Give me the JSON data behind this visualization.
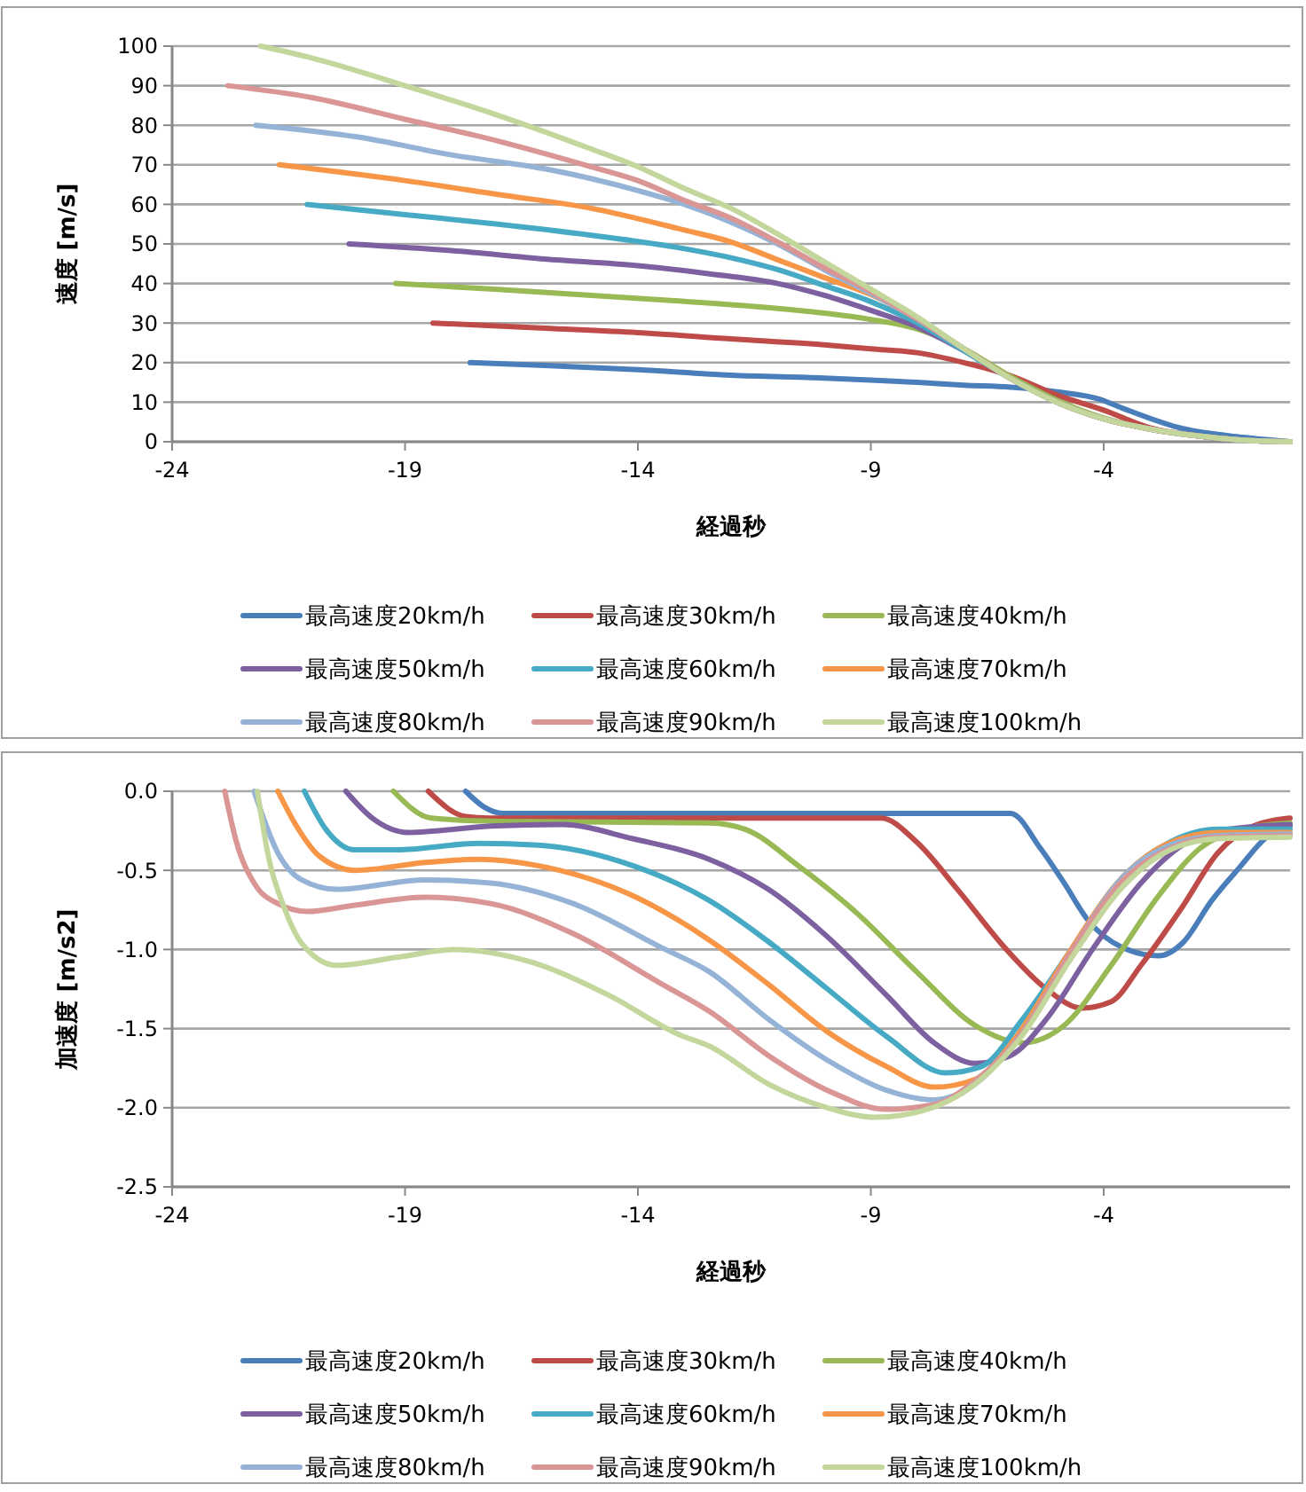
{
  "chart_data": [
    {
      "type": "line",
      "xlabel": "経過秒",
      "ylabel": "速度 [m/s]",
      "xlim": [
        -24,
        0
      ],
      "xticks": [
        -24,
        -19,
        -14,
        -9,
        -4
      ],
      "ylim": [
        0,
        100
      ],
      "yticks": [
        0,
        10,
        20,
        30,
        40,
        50,
        60,
        70,
        80,
        90,
        100
      ],
      "grid": "y",
      "legend": "bottom",
      "marker": "none",
      "line_style": "solid",
      "series": [
        {
          "name": "最高速度20km/h",
          "color": "#4a7ebb",
          "x": [
            -17.6,
            -16,
            -14,
            -12,
            -10,
            -9,
            -8,
            -7,
            -6,
            -5,
            -4.1,
            -3.6,
            -2.3,
            -1,
            0
          ],
          "values": [
            20,
            19.3,
            18.2,
            16.8,
            16.1,
            15.6,
            15,
            14.3,
            13.8,
            12.6,
            10.8,
            8.5,
            3.3,
            1.1,
            0
          ]
        },
        {
          "name": "最高速度30km/h",
          "color": "#be4b48",
          "x": [
            -18.4,
            -16,
            -14,
            -12,
            -10,
            -9,
            -8,
            -7,
            -6,
            -5,
            -4,
            -3,
            -2,
            -1,
            0
          ],
          "values": [
            30,
            28.7,
            27.6,
            26,
            24.5,
            23.5,
            22.5,
            20,
            16.7,
            11.8,
            8,
            3.5,
            1.5,
            0.4,
            0
          ]
        },
        {
          "name": "最高速度40km/h",
          "color": "#98b954",
          "x": [
            -19.2,
            -17,
            -15,
            -13,
            -11,
            -10,
            -9,
            -8,
            -7,
            -6,
            -5,
            -4,
            -3,
            -2,
            -1,
            0
          ],
          "values": [
            40,
            38.5,
            37,
            35.5,
            33.7,
            32.5,
            30.9,
            28.5,
            23.5,
            16.5,
            10.5,
            6,
            3.2,
            1.5,
            0.4,
            0
          ]
        },
        {
          "name": "最高速度50km/h",
          "color": "#7d60a0",
          "x": [
            -20.2,
            -18,
            -16,
            -14,
            -12.5,
            -11,
            -10,
            -9,
            -8,
            -7,
            -6,
            -5,
            -4,
            -3,
            -2,
            -1,
            0
          ],
          "values": [
            50,
            48.3,
            46.2,
            44.5,
            42.5,
            40,
            37,
            33.2,
            29,
            23,
            16,
            10,
            5.8,
            3.2,
            1.5,
            0.4,
            0
          ]
        },
        {
          "name": "最高速度60km/h",
          "color": "#46aac5",
          "x": [
            -21.1,
            -19,
            -17,
            -15,
            -13,
            -12,
            -11,
            -10,
            -9,
            -8,
            -7,
            -6,
            -5,
            -4,
            -3,
            -2,
            -1,
            0
          ],
          "values": [
            60,
            57.4,
            55,
            52.2,
            48.8,
            46.5,
            43.5,
            39.5,
            35.4,
            30,
            23,
            16,
            10,
            5.8,
            3.2,
            1.5,
            0.4,
            0
          ]
        },
        {
          "name": "最高速度70km/h",
          "color": "#f79646",
          "x": [
            -21.7,
            -19,
            -17,
            -15,
            -13,
            -12,
            -11,
            -10,
            -9,
            -8,
            -7,
            -6,
            -5,
            -4,
            -3,
            -2
          ],
          "values": [
            70,
            66,
            62.5,
            59,
            53.5,
            50.5,
            46,
            41.5,
            37.2,
            31,
            23.5,
            16,
            10,
            5.8,
            3.2,
            1.5
          ]
        },
        {
          "name": "最高速度80km/h",
          "color": "#95b3d7",
          "x": [
            -22.2,
            -20,
            -18,
            -16,
            -14,
            -13,
            -12,
            -11,
            -10,
            -9,
            -8,
            -7,
            -6,
            -5,
            -4,
            -3,
            -2,
            -1,
            0
          ],
          "values": [
            80,
            77,
            72.5,
            69,
            63.5,
            60,
            55.5,
            50,
            43.5,
            37.5,
            31,
            23.5,
            16,
            10,
            5.8,
            3.2,
            1.5,
            0.4,
            0
          ]
        },
        {
          "name": "最高速度90km/h",
          "color": "#d99694",
          "x": [
            -22.8,
            -21,
            -19,
            -17,
            -15,
            -14,
            -13,
            -12,
            -11,
            -10,
            -9,
            -8,
            -7,
            -6,
            -5,
            -4,
            -3,
            -2,
            -1,
            0
          ],
          "values": [
            90,
            87,
            81.5,
            76,
            69.5,
            66,
            61,
            56.5,
            50.5,
            44,
            38,
            31,
            23.5,
            16,
            10,
            5.8,
            3.2,
            1.5,
            0.4,
            0
          ]
        },
        {
          "name": "最高速度100km/h",
          "color": "#c3d69b",
          "x": [
            -22.1,
            -21,
            -19,
            -17,
            -15,
            -14,
            -13,
            -12,
            -11,
            -10,
            -9,
            -8,
            -7,
            -6,
            -5,
            -4,
            -3,
            -2,
            -1,
            0
          ],
          "values": [
            100,
            97,
            90,
            82.5,
            74,
            69.5,
            64,
            59,
            52.5,
            45.5,
            38.6,
            31.5,
            23.5,
            16,
            10,
            5.8,
            3.2,
            1.5,
            0.4,
            0
          ]
        }
      ]
    },
    {
      "type": "line",
      "xlabel": "経過秒",
      "ylabel": "加速度 [m/s2]",
      "xlim": [
        -24,
        0
      ],
      "xticks": [
        -24,
        -19,
        -14,
        -9,
        -4
      ],
      "ylim": [
        -2.5,
        0
      ],
      "yticks": [
        {
          "value": 0,
          "label": "0.0"
        },
        {
          "value": -0.5,
          "label": "-0.5"
        },
        {
          "value": -1,
          "label": "-1.0"
        },
        {
          "value": -1.5,
          "label": "-1.5"
        },
        {
          "value": -2,
          "label": "-2.0"
        },
        {
          "value": -2.5,
          "label": "-2.5"
        }
      ],
      "grid": "y",
      "legend": "bottom",
      "marker": "none",
      "line_style": "solid",
      "series": [
        {
          "name": "最高速度20km/h",
          "color": "#4a7ebb",
          "x": [
            -17.7,
            -17.3,
            -16.9,
            -6,
            -5.36,
            -4.85,
            -4.35,
            -3.58,
            -2.82,
            -2.31,
            -1.68,
            -1.05,
            -0.54,
            0
          ],
          "values": [
            0,
            -0.1,
            -0.14,
            -0.14,
            -0.36,
            -0.58,
            -0.81,
            -0.99,
            -1.04,
            -0.96,
            -0.69,
            -0.47,
            -0.3,
            -0.22
          ]
        },
        {
          "name": "最高速度30km/h",
          "color": "#be4b48",
          "x": [
            -18.5,
            -17.7,
            -17.2,
            -8.78,
            -8.02,
            -7.14,
            -6.12,
            -5.23,
            -4.47,
            -3.84,
            -3.2,
            -2.31,
            -1.55,
            -0.79,
            0
          ],
          "values": [
            0,
            -0.16,
            -0.17,
            -0.17,
            -0.32,
            -0.62,
            -0.99,
            -1.25,
            -1.37,
            -1.33,
            -1.1,
            -0.73,
            -0.39,
            -0.22,
            -0.17
          ]
        },
        {
          "name": "最高速度40km/h",
          "color": "#98b954",
          "x": [
            -19.25,
            -18.43,
            -17,
            -12.47,
            -11.7,
            -10.56,
            -9.3,
            -8.02,
            -6.76,
            -5.74,
            -4.85,
            -3.84,
            -2.82,
            -1.93,
            -1.05,
            0
          ],
          "values": [
            0,
            -0.17,
            -0.19,
            -0.2,
            -0.24,
            -0.47,
            -0.77,
            -1.14,
            -1.48,
            -1.59,
            -1.48,
            -1.1,
            -0.66,
            -0.36,
            -0.24,
            -0.2
          ]
        },
        {
          "name": "最高速度50km/h",
          "color": "#7d60a0",
          "x": [
            -20.27,
            -19.7,
            -18.94,
            -17.16,
            -15.64,
            -14.11,
            -12.47,
            -11.2,
            -9.93,
            -8.66,
            -7.64,
            -6.76,
            -6,
            -5.23,
            -4.22,
            -3.2,
            -2.31,
            -1.3,
            0
          ],
          "values": [
            0,
            -0.17,
            -0.26,
            -0.22,
            -0.21,
            -0.3,
            -0.43,
            -0.62,
            -0.92,
            -1.29,
            -1.59,
            -1.72,
            -1.67,
            -1.44,
            -0.99,
            -0.58,
            -0.34,
            -0.24,
            -0.21
          ]
        },
        {
          "name": "最高速度60km/h",
          "color": "#46aac5",
          "x": [
            -21.16,
            -20.7,
            -20.08,
            -19.19,
            -17.41,
            -16.15,
            -14.11,
            -12.47,
            -11.2,
            -9.93,
            -8.66,
            -7.39,
            -6.63,
            -5.74,
            -4.6,
            -3.58,
            -2.57,
            -1.55,
            0
          ],
          "values": [
            0,
            -0.24,
            -0.37,
            -0.37,
            -0.33,
            -0.34,
            -0.47,
            -0.69,
            -0.95,
            -1.25,
            -1.55,
            -1.78,
            -1.74,
            -1.44,
            -0.96,
            -0.54,
            -0.32,
            -0.24,
            -0.24
          ]
        },
        {
          "name": "最高速度70km/h",
          "color": "#f79646",
          "x": [
            -21.73,
            -21.35,
            -20.84,
            -20.08,
            -18.56,
            -17.41,
            -16.15,
            -14.11,
            -12.47,
            -11.2,
            -9.93,
            -8.66,
            -7.64,
            -6.76,
            -5.87,
            -4.85,
            -3.71,
            -2.69,
            -1.55,
            0
          ],
          "values": [
            0,
            -0.21,
            -0.41,
            -0.5,
            -0.45,
            -0.43,
            -0.47,
            -0.66,
            -0.94,
            -1.22,
            -1.52,
            -1.74,
            -1.87,
            -1.82,
            -1.55,
            -1.07,
            -0.58,
            -0.34,
            -0.26,
            -0.26
          ]
        },
        {
          "name": "最高速度80km/h",
          "color": "#95b3d7",
          "x": [
            -22.24,
            -21.73,
            -21.22,
            -20.46,
            -18.56,
            -17.16,
            -15.39,
            -13.48,
            -12.47,
            -11.2,
            -9.93,
            -8.66,
            -7.64,
            -6.76,
            -5.74,
            -4.73,
            -3.58,
            -2.57,
            -1.55,
            0
          ],
          "values": [
            0,
            -0.39,
            -0.56,
            -0.62,
            -0.56,
            -0.58,
            -0.71,
            -0.99,
            -1.14,
            -1.44,
            -1.7,
            -1.89,
            -1.95,
            -1.85,
            -1.52,
            -1.03,
            -0.54,
            -0.34,
            -0.28,
            -0.27
          ]
        },
        {
          "name": "最高速度90km/h",
          "color": "#d99694",
          "x": [
            -22.87,
            -22.62,
            -22.24,
            -21.73,
            -21.1,
            -20.08,
            -18.56,
            -17.16,
            -15.39,
            -13.48,
            -12.47,
            -11.2,
            -9.93,
            -8.66,
            -7.64,
            -6.76,
            -5.74,
            -4.73,
            -3.58,
            -2.57,
            -1.55,
            0
          ],
          "values": [
            0,
            -0.32,
            -0.58,
            -0.71,
            -0.76,
            -0.72,
            -0.67,
            -0.71,
            -0.9,
            -1.22,
            -1.39,
            -1.67,
            -1.89,
            -2.01,
            -1.98,
            -1.83,
            -1.52,
            -1.03,
            -0.56,
            -0.36,
            -0.29,
            -0.28
          ]
        },
        {
          "name": "最高速度100km/h",
          "color": "#c3d69b",
          "x": [
            -22.17,
            -21.92,
            -21.6,
            -21.22,
            -20.46,
            -19.19,
            -17.92,
            -16.4,
            -14.62,
            -13.1,
            -12.47,
            -11.2,
            -9.93,
            -8.91,
            -7.9,
            -6.76,
            -5.74,
            -4.73,
            -3.58,
            -2.57,
            -1.55,
            0
          ],
          "values": [
            0,
            -0.43,
            -0.73,
            -0.96,
            -1.1,
            -1.05,
            -1,
            -1.07,
            -1.29,
            -1.54,
            -1.61,
            -1.85,
            -2,
            -2.06,
            -2.02,
            -1.85,
            -1.54,
            -1.07,
            -0.6,
            -0.37,
            -0.3,
            -0.29
          ]
        }
      ]
    }
  ]
}
